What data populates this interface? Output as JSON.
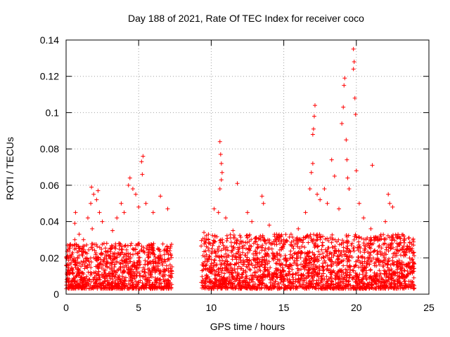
{
  "chart_data": {
    "type": "scatter",
    "title": "Day 188 of 2021, Rate Of TEC Index for receiver coco",
    "xlabel": "GPS time / hours",
    "ylabel": "ROTI / TECUs",
    "xlim": [
      0,
      25
    ],
    "ylim": [
      0,
      0.14
    ],
    "xticks": [
      0,
      5,
      10,
      15,
      20,
      25
    ],
    "yticks": [
      0,
      0.02,
      0.04,
      0.06,
      0.08,
      0.1,
      0.12,
      0.14
    ],
    "xtick_labels": [
      "0",
      "5",
      "10",
      "15",
      "20",
      "25"
    ],
    "ytick_labels": [
      "0",
      "0.02",
      "0.04",
      "0.06",
      "0.08",
      "0.1",
      "0.12",
      "0.14"
    ],
    "grid": true,
    "marker": "+",
    "color": "#ff0000",
    "segments": [
      {
        "x_start": 0.0,
        "x_end": 7.3,
        "typical_max": 0.025
      },
      {
        "x_start": 9.3,
        "x_end": 24.0,
        "typical_max": 0.03
      }
    ],
    "series": [
      {
        "name": "ROTI",
        "points": [
          [
            0.1,
            0.027
          ],
          [
            0.3,
            0.02
          ],
          [
            0.6,
            0.03
          ],
          [
            0.6,
            0.039
          ],
          [
            0.65,
            0.045
          ],
          [
            0.9,
            0.033
          ],
          [
            1.2,
            0.03
          ],
          [
            1.5,
            0.042
          ],
          [
            1.7,
            0.05
          ],
          [
            1.75,
            0.059
          ],
          [
            1.8,
            0.036
          ],
          [
            1.9,
            0.055
          ],
          [
            2.1,
            0.052
          ],
          [
            2.2,
            0.057
          ],
          [
            2.3,
            0.045
          ],
          [
            2.5,
            0.04
          ],
          [
            2.8,
            0.028
          ],
          [
            3.2,
            0.035
          ],
          [
            3.5,
            0.042
          ],
          [
            3.8,
            0.05
          ],
          [
            4.0,
            0.045
          ],
          [
            4.3,
            0.06
          ],
          [
            4.4,
            0.064
          ],
          [
            4.6,
            0.058
          ],
          [
            4.8,
            0.055
          ],
          [
            5.0,
            0.048
          ],
          [
            5.2,
            0.073
          ],
          [
            5.3,
            0.076
          ],
          [
            5.25,
            0.066
          ],
          [
            5.5,
            0.05
          ],
          [
            6.0,
            0.045
          ],
          [
            6.5,
            0.054
          ],
          [
            7.0,
            0.047
          ],
          [
            9.5,
            0.034
          ],
          [
            9.8,
            0.03
          ],
          [
            10.2,
            0.047
          ],
          [
            10.5,
            0.045
          ],
          [
            10.6,
            0.084
          ],
          [
            10.65,
            0.077
          ],
          [
            10.7,
            0.072
          ],
          [
            10.75,
            0.067
          ],
          [
            10.7,
            0.063
          ],
          [
            10.6,
            0.058
          ],
          [
            11.0,
            0.042
          ],
          [
            11.5,
            0.035
          ],
          [
            11.8,
            0.061
          ],
          [
            12.5,
            0.045
          ],
          [
            12.8,
            0.04
          ],
          [
            13.5,
            0.054
          ],
          [
            13.6,
            0.05
          ],
          [
            14.0,
            0.038
          ],
          [
            14.5,
            0.033
          ],
          [
            15.0,
            0.03
          ],
          [
            15.5,
            0.033
          ],
          [
            16.0,
            0.036
          ],
          [
            16.5,
            0.045
          ],
          [
            16.8,
            0.058
          ],
          [
            16.9,
            0.067
          ],
          [
            17.0,
            0.072
          ],
          [
            17.05,
            0.091
          ],
          [
            17.1,
            0.098
          ],
          [
            17.15,
            0.104
          ],
          [
            17.0,
            0.088
          ],
          [
            17.3,
            0.055
          ],
          [
            17.5,
            0.052
          ],
          [
            17.8,
            0.058
          ],
          [
            18.0,
            0.05
          ],
          [
            18.3,
            0.074
          ],
          [
            18.5,
            0.065
          ],
          [
            18.8,
            0.047
          ],
          [
            19.0,
            0.094
          ],
          [
            19.1,
            0.103
          ],
          [
            19.15,
            0.115
          ],
          [
            19.2,
            0.119
          ],
          [
            19.3,
            0.085
          ],
          [
            19.35,
            0.074
          ],
          [
            19.4,
            0.064
          ],
          [
            19.5,
            0.058
          ],
          [
            19.8,
            0.135
          ],
          [
            19.85,
            0.128
          ],
          [
            19.8,
            0.124
          ],
          [
            19.9,
            0.108
          ],
          [
            19.95,
            0.099
          ],
          [
            20.0,
            0.068
          ],
          [
            20.2,
            0.05
          ],
          [
            20.5,
            0.042
          ],
          [
            21.0,
            0.036
          ],
          [
            21.1,
            0.071
          ],
          [
            21.5,
            0.03
          ],
          [
            22.0,
            0.04
          ],
          [
            22.2,
            0.055
          ],
          [
            22.3,
            0.05
          ],
          [
            22.5,
            0.048
          ],
          [
            23.0,
            0.028
          ],
          [
            23.5,
            0.025
          ],
          [
            23.8,
            0.024
          ]
        ]
      }
    ]
  }
}
